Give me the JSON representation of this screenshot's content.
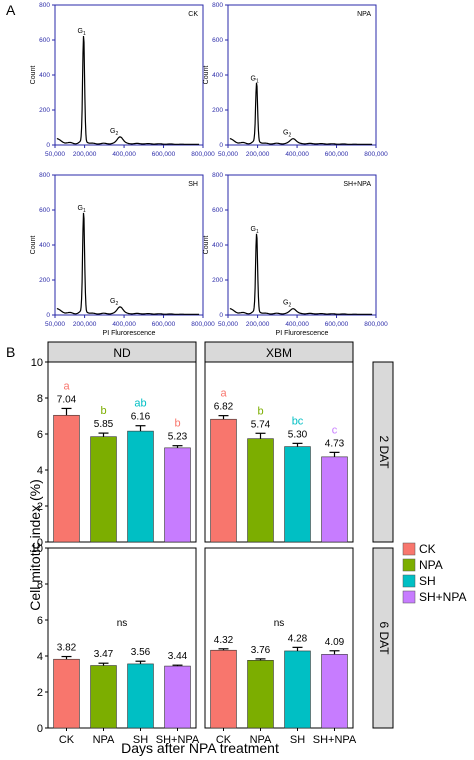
{
  "panel_a": {
    "letter": "A",
    "plots": [
      {
        "label": "CK",
        "peaks": [
          {
            "name": "G",
            "sub": "1",
            "x": 195000,
            "y": 600
          },
          {
            "name": "G",
            "sub": "2",
            "x": 380000,
            "y": 40
          }
        ]
      },
      {
        "label": "NPA",
        "peaks": [
          {
            "name": "G",
            "sub": "1",
            "x": 195000,
            "y": 330
          },
          {
            "name": "G",
            "sub": "2",
            "x": 380000,
            "y": 30
          }
        ]
      },
      {
        "label": "SH",
        "peaks": [
          {
            "name": "G",
            "sub": "1",
            "x": 195000,
            "y": 560
          },
          {
            "name": "G",
            "sub": "2",
            "x": 380000,
            "y": 40
          }
        ]
      },
      {
        "label": "SH+NPA",
        "peaks": [
          {
            "name": "G",
            "sub": "1",
            "x": 195000,
            "y": 440
          },
          {
            "name": "G",
            "sub": "2",
            "x": 380000,
            "y": 30
          }
        ]
      }
    ],
    "y_label": "Count",
    "x_label": "PI Flurorescence",
    "y_ticks": [
      "0",
      "200",
      "400",
      "600",
      "800"
    ],
    "x_ticks": [
      "50,000",
      "200,000",
      "400,000",
      "600,000",
      "800,000"
    ]
  },
  "chart_data": {
    "type": "bar",
    "panel_letter": "B",
    "categories": [
      "CK",
      "NPA",
      "SH",
      "SH+NPA"
    ],
    "colors": [
      "#f8766d",
      "#7cae00",
      "#00bfc4",
      "#c77cff"
    ],
    "sig_colors": {
      "a": "#f8766d",
      "b": "#7cae00",
      "ab": "#00bfc4",
      "bc": "#00bfc4",
      "c": "#c77cff",
      "b_pink": "#f8766d"
    },
    "ylabel": "Cell mitotic index (%)",
    "xlabel": "Days after NPA treatment",
    "ylim": [
      0,
      10
    ],
    "y_ticks": [
      0,
      2,
      4,
      6,
      8,
      10
    ],
    "columns": [
      "ND",
      "XBM"
    ],
    "rows": [
      "2 DAT",
      "6 DAT"
    ],
    "legend": [
      "CK",
      "NPA",
      "SH",
      "SH+NPA"
    ],
    "legend_placement": "right",
    "panels": [
      {
        "column": "ND",
        "row": "2 DAT",
        "values": [
          7.04,
          5.85,
          6.16,
          5.23
        ],
        "errors": [
          0.38,
          0.2,
          0.3,
          0.12
        ],
        "labels": [
          "7.04",
          "5.85",
          "6.16",
          "5.23"
        ],
        "letters": [
          "a",
          "b",
          "ab",
          "b"
        ],
        "letter_colors": [
          "#f8766d",
          "#7cae00",
          "#00bfc4",
          "#f8766d"
        ]
      },
      {
        "column": "XBM",
        "row": "2 DAT",
        "values": [
          6.82,
          5.74,
          5.3,
          4.73
        ],
        "errors": [
          0.2,
          0.3,
          0.18,
          0.25
        ],
        "labels": [
          "6.82",
          "5.74",
          "5.30",
          "4.73"
        ],
        "letters": [
          "a",
          "b",
          "bc",
          "c"
        ],
        "letter_colors": [
          "#f8766d",
          "#7cae00",
          "#00bfc4",
          "#c77cff"
        ]
      },
      {
        "column": "ND",
        "row": "6 DAT",
        "values": [
          3.82,
          3.47,
          3.56,
          3.44
        ],
        "errors": [
          0.15,
          0.13,
          0.15,
          0.05
        ],
        "labels": [
          "3.82",
          "3.47",
          "3.56",
          "3.44"
        ],
        "annotation": "ns"
      },
      {
        "column": "XBM",
        "row": "6 DAT",
        "values": [
          4.32,
          3.76,
          4.28,
          4.09
        ],
        "errors": [
          0.08,
          0.08,
          0.2,
          0.2
        ],
        "labels": [
          "4.32",
          "3.76",
          "4.28",
          "4.09"
        ],
        "annotation": "ns"
      }
    ]
  }
}
